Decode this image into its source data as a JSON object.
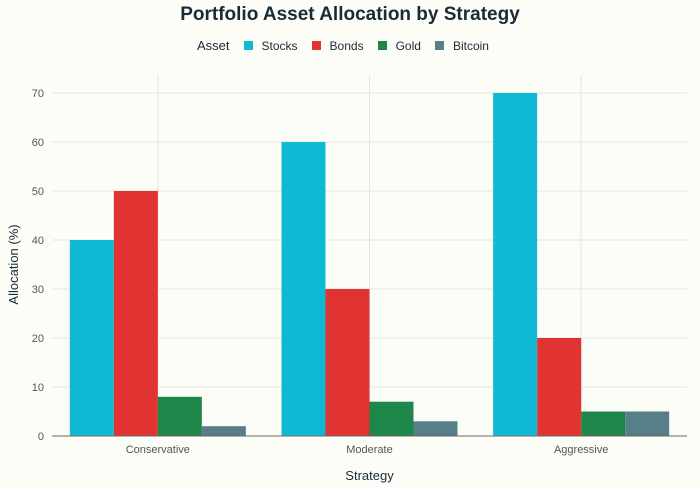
{
  "chart_data": {
    "type": "bar",
    "title": "Portfolio Asset Allocation by Strategy",
    "xlabel": "Strategy",
    "ylabel": "Allocation (%)",
    "legend_title": "Asset",
    "legend_position": "top",
    "categories": [
      "Conservative",
      "Moderate",
      "Aggressive"
    ],
    "yticks": [
      0,
      10,
      20,
      30,
      40,
      50,
      60,
      70
    ],
    "ylim": [
      0,
      70
    ],
    "grid": true,
    "series": [
      {
        "name": "Stocks",
        "color": "#0fb9d3",
        "values": [
          40,
          60,
          70
        ]
      },
      {
        "name": "Bonds",
        "color": "#e23333",
        "values": [
          50,
          30,
          20
        ]
      },
      {
        "name": "Gold",
        "color": "#1f8649",
        "values": [
          8,
          7,
          5
        ]
      },
      {
        "name": "Bitcoin",
        "color": "#577f88",
        "values": [
          2,
          3,
          5
        ]
      }
    ]
  }
}
